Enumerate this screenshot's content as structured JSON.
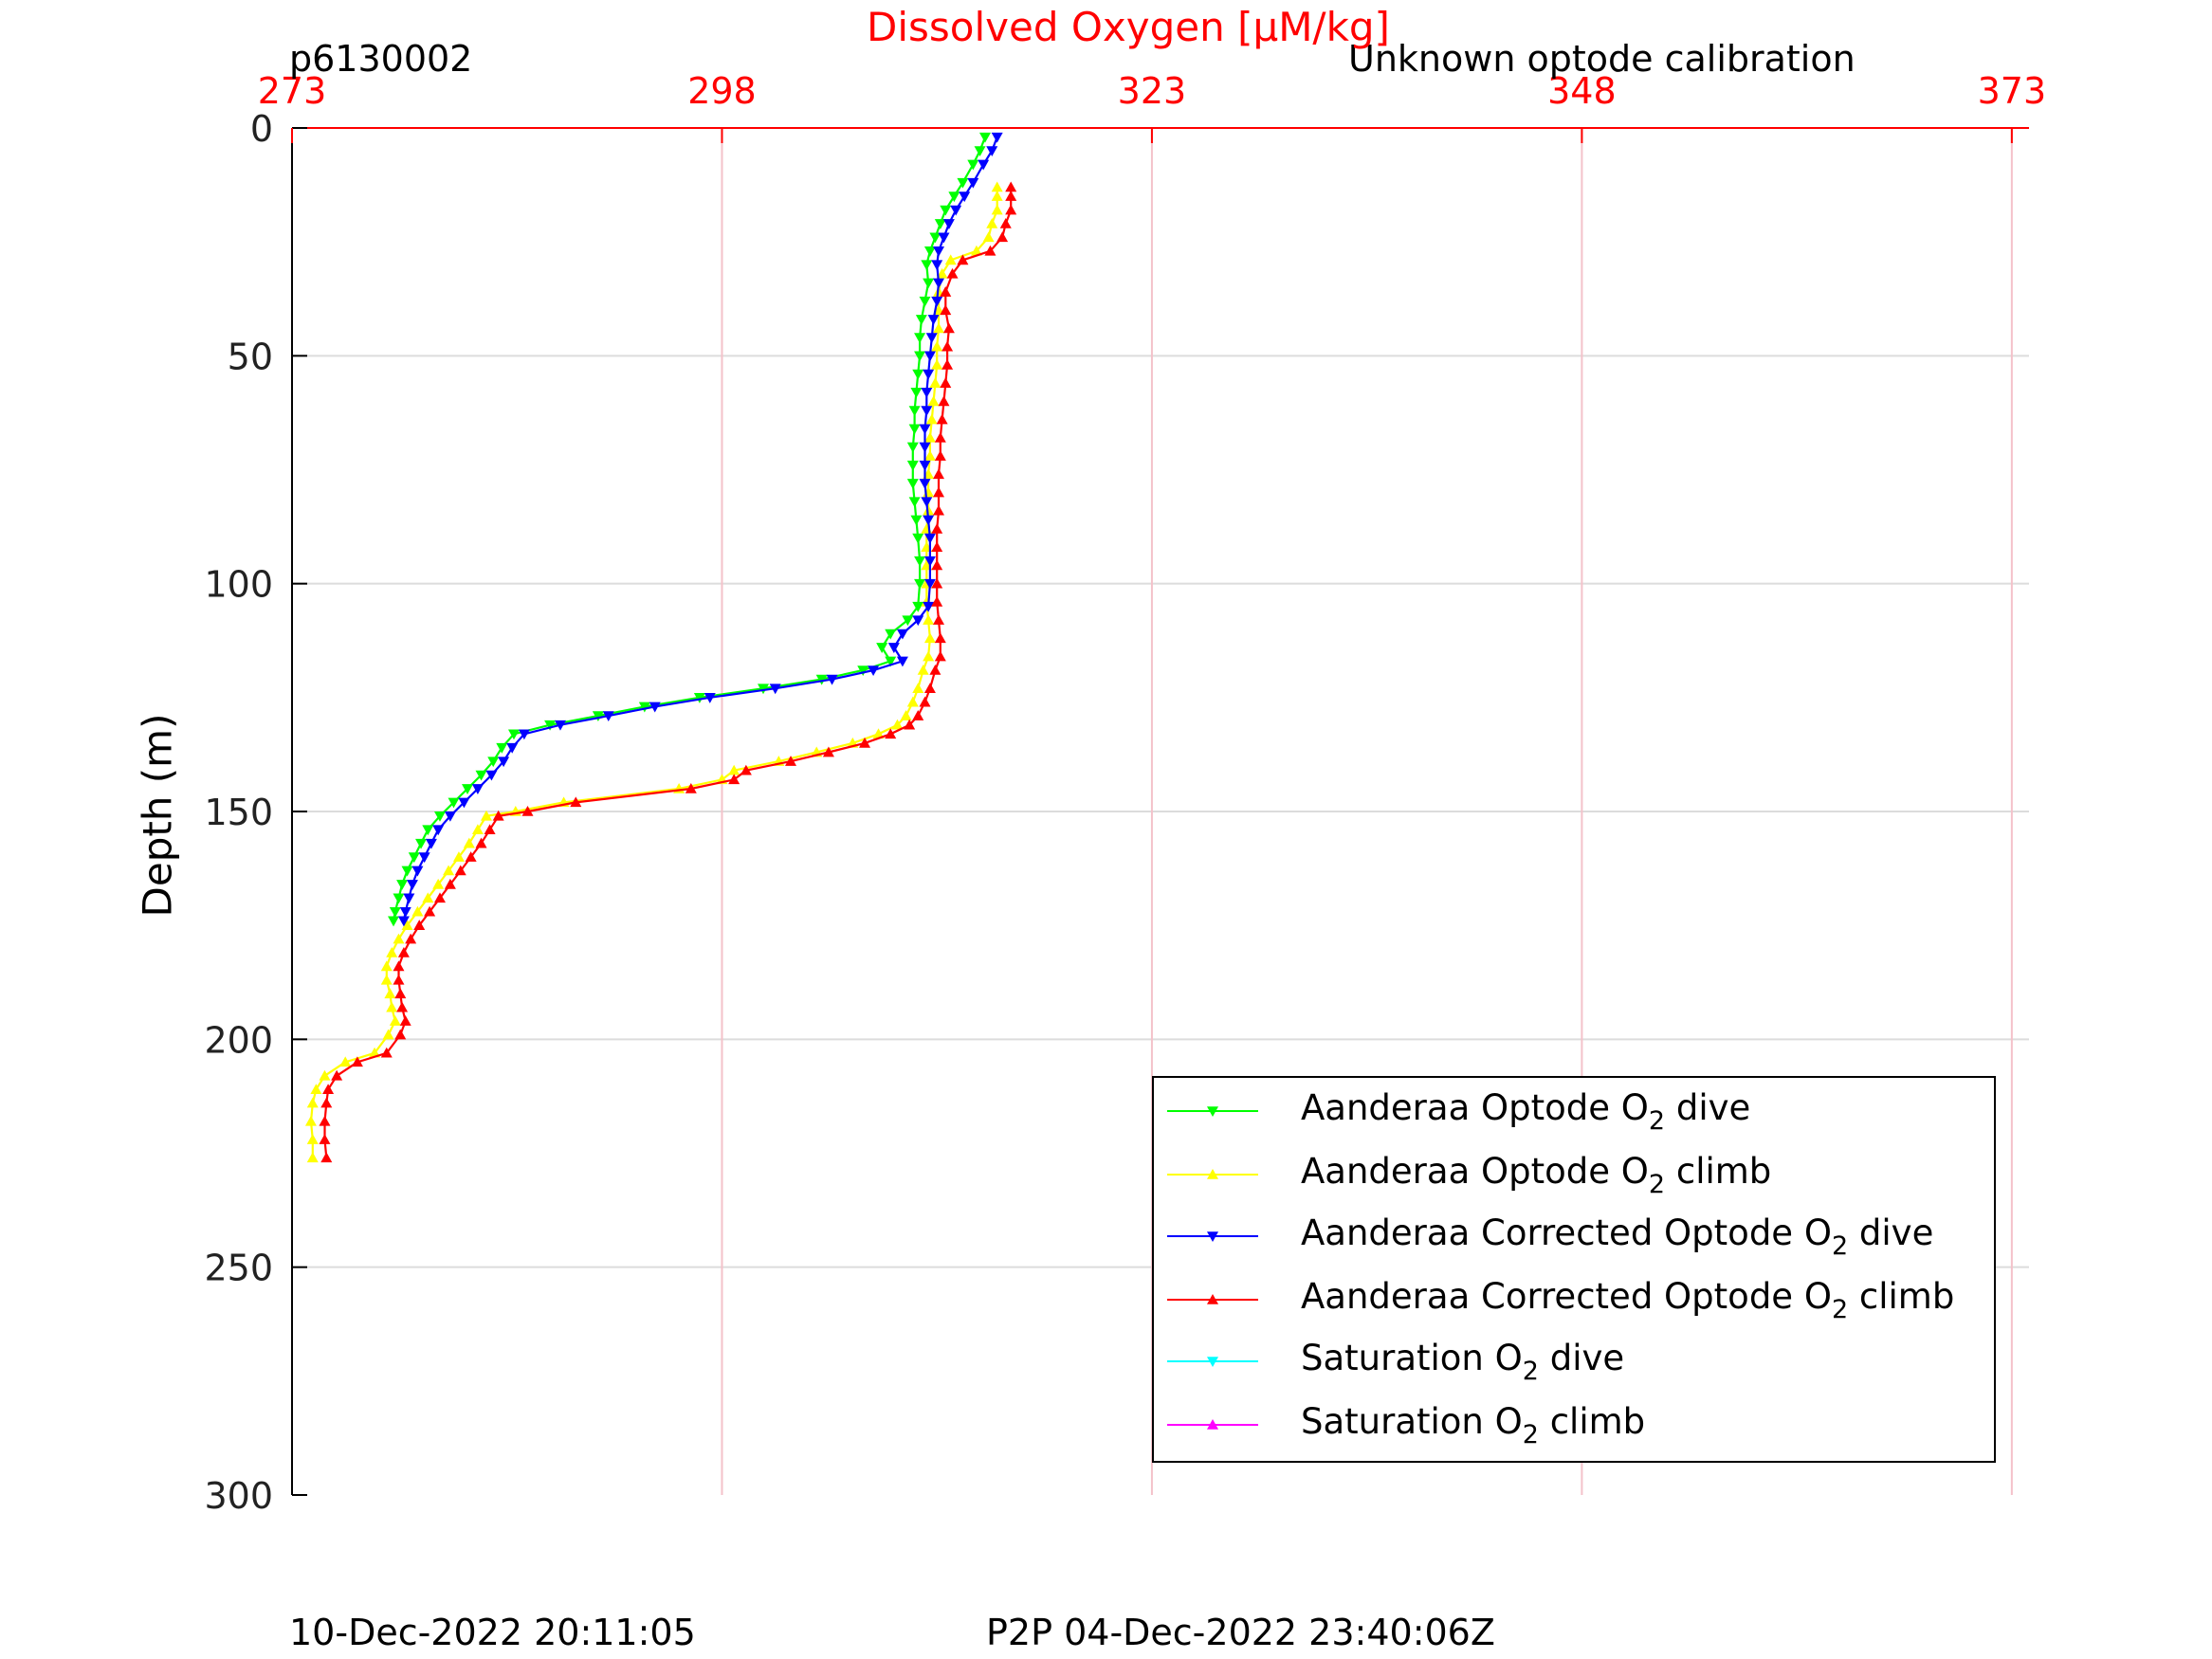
{
  "header": {
    "left_label": "p6130002",
    "right_label": "Unknown optode calibration"
  },
  "footer": {
    "left_text": "10-Dec-2022 20:11:05",
    "right_text": "P2P 04-Dec-2022 23:40:06Z"
  },
  "chart_data": {
    "type": "line",
    "title": "",
    "xlabel": "Dissolved Oxygen [μM/kg]",
    "ylabel": "Depth (m)",
    "x_axis_position": "top",
    "xlim": [
      273,
      374
    ],
    "ylim": [
      0,
      300
    ],
    "y_reversed": true,
    "x_ticks": [
      273,
      298,
      323,
      348,
      373
    ],
    "y_ticks": [
      0,
      50,
      100,
      150,
      200,
      250,
      300
    ],
    "grid": true,
    "legend_position": "bottom-right",
    "colors": {
      "x_axis": "#ff0000",
      "grid": "#dcdcdc",
      "x_grid": "#f4c2ca"
    },
    "series": [
      {
        "name_main": "Aanderaa Optode O",
        "name_sub": "2",
        "name_tail": " dive",
        "color": "#00ff00",
        "marker": "triangle-down",
        "points": [
          [
            313.3,
            2
          ],
          [
            313.0,
            5
          ],
          [
            312.6,
            8
          ],
          [
            312.0,
            12
          ],
          [
            311.5,
            15
          ],
          [
            311.0,
            18
          ],
          [
            310.7,
            21
          ],
          [
            310.4,
            24
          ],
          [
            310.1,
            27
          ],
          [
            309.9,
            30
          ],
          [
            310.0,
            34
          ],
          [
            309.8,
            38
          ],
          [
            309.6,
            42
          ],
          [
            309.5,
            46
          ],
          [
            309.5,
            50
          ],
          [
            309.4,
            54
          ],
          [
            309.3,
            58
          ],
          [
            309.2,
            62
          ],
          [
            309.2,
            66
          ],
          [
            309.1,
            70
          ],
          [
            309.1,
            74
          ],
          [
            309.1,
            78
          ],
          [
            309.2,
            82
          ],
          [
            309.3,
            86
          ],
          [
            309.4,
            90
          ],
          [
            309.5,
            95
          ],
          [
            309.5,
            100
          ],
          [
            309.4,
            105
          ],
          [
            308.8,
            108
          ],
          [
            307.8,
            111
          ],
          [
            307.3,
            114
          ],
          [
            307.8,
            117
          ],
          [
            306.2,
            119
          ],
          [
            303.8,
            121
          ],
          [
            300.4,
            123
          ],
          [
            296.7,
            125
          ],
          [
            293.5,
            127
          ],
          [
            290.8,
            129
          ],
          [
            288.0,
            131
          ],
          [
            285.9,
            133
          ],
          [
            285.2,
            136
          ],
          [
            284.7,
            139
          ],
          [
            284.0,
            142
          ],
          [
            283.2,
            145
          ],
          [
            282.4,
            148
          ],
          [
            281.6,
            151
          ],
          [
            280.9,
            154
          ],
          [
            280.5,
            157
          ],
          [
            280.1,
            160
          ],
          [
            279.7,
            163
          ],
          [
            279.4,
            166
          ],
          [
            279.2,
            169
          ],
          [
            279.0,
            172
          ],
          [
            278.9,
            174
          ]
        ]
      },
      {
        "name_main": "Aanderaa Optode O",
        "name_sub": "2",
        "name_tail": " climb",
        "color": "#ffff00",
        "marker": "triangle-up",
        "points": [
          [
            274.2,
            226
          ],
          [
            274.2,
            222
          ],
          [
            274.1,
            218
          ],
          [
            274.2,
            214
          ],
          [
            274.4,
            211
          ],
          [
            274.9,
            208
          ],
          [
            276.1,
            205
          ],
          [
            277.8,
            203
          ],
          [
            278.6,
            199
          ],
          [
            279.0,
            196
          ],
          [
            278.8,
            193
          ],
          [
            278.7,
            190
          ],
          [
            278.5,
            187
          ],
          [
            278.5,
            184
          ],
          [
            278.8,
            181
          ],
          [
            279.2,
            178
          ],
          [
            279.7,
            175
          ],
          [
            280.3,
            172
          ],
          [
            280.9,
            169
          ],
          [
            281.5,
            166
          ],
          [
            282.1,
            163
          ],
          [
            282.7,
            160
          ],
          [
            283.3,
            157
          ],
          [
            283.8,
            154
          ],
          [
            284.3,
            151
          ],
          [
            286.0,
            150
          ],
          [
            288.8,
            148
          ],
          [
            295.5,
            145
          ],
          [
            298.0,
            143
          ],
          [
            298.7,
            141
          ],
          [
            301.3,
            139
          ],
          [
            303.5,
            137
          ],
          [
            305.6,
            135
          ],
          [
            307.1,
            133
          ],
          [
            308.2,
            131
          ],
          [
            308.7,
            129
          ],
          [
            309.1,
            126
          ],
          [
            309.4,
            123
          ],
          [
            309.7,
            119
          ],
          [
            310.0,
            116
          ],
          [
            310.1,
            112
          ],
          [
            310.0,
            108
          ],
          [
            309.9,
            104
          ],
          [
            309.9,
            100
          ],
          [
            309.9,
            96
          ],
          [
            309.9,
            92
          ],
          [
            309.9,
            88
          ],
          [
            310.0,
            84
          ],
          [
            310.0,
            80
          ],
          [
            310.0,
            76
          ],
          [
            310.1,
            72
          ],
          [
            310.1,
            68
          ],
          [
            310.2,
            64
          ],
          [
            310.3,
            60
          ],
          [
            310.4,
            56
          ],
          [
            310.5,
            52
          ],
          [
            310.5,
            48
          ],
          [
            310.6,
            44
          ],
          [
            310.6,
            40
          ],
          [
            310.6,
            36
          ],
          [
            310.8,
            32
          ],
          [
            311.3,
            29
          ],
          [
            312.8,
            27
          ],
          [
            313.5,
            24
          ],
          [
            313.7,
            21
          ],
          [
            314.0,
            18
          ],
          [
            314.0,
            15
          ],
          [
            314.0,
            13
          ]
        ]
      },
      {
        "name_main": "Aanderaa Corrected Optode O",
        "name_sub": "2",
        "name_tail": " dive",
        "color": "#0000ff",
        "marker": "triangle-down",
        "points": [
          [
            314.0,
            2
          ],
          [
            313.7,
            5
          ],
          [
            313.2,
            8
          ],
          [
            312.6,
            12
          ],
          [
            312.1,
            15
          ],
          [
            311.6,
            18
          ],
          [
            311.2,
            21
          ],
          [
            310.9,
            24
          ],
          [
            310.6,
            27
          ],
          [
            310.5,
            30
          ],
          [
            310.6,
            34
          ],
          [
            310.5,
            38
          ],
          [
            310.3,
            42
          ],
          [
            310.2,
            46
          ],
          [
            310.1,
            50
          ],
          [
            310.0,
            54
          ],
          [
            309.9,
            58
          ],
          [
            309.9,
            62
          ],
          [
            309.8,
            66
          ],
          [
            309.8,
            70
          ],
          [
            309.8,
            74
          ],
          [
            309.8,
            78
          ],
          [
            309.9,
            82
          ],
          [
            310.0,
            86
          ],
          [
            310.1,
            90
          ],
          [
            310.1,
            95
          ],
          [
            310.1,
            100
          ],
          [
            310.0,
            105
          ],
          [
            309.4,
            108
          ],
          [
            308.5,
            111
          ],
          [
            308.0,
            114
          ],
          [
            308.5,
            117
          ],
          [
            306.8,
            119
          ],
          [
            304.4,
            121
          ],
          [
            301.1,
            123
          ],
          [
            297.3,
            125
          ],
          [
            294.1,
            127
          ],
          [
            291.4,
            129
          ],
          [
            288.6,
            131
          ],
          [
            286.5,
            133
          ],
          [
            285.8,
            136
          ],
          [
            285.3,
            139
          ],
          [
            284.6,
            142
          ],
          [
            283.8,
            145
          ],
          [
            283.0,
            148
          ],
          [
            282.2,
            151
          ],
          [
            281.5,
            154
          ],
          [
            281.1,
            157
          ],
          [
            280.7,
            160
          ],
          [
            280.3,
            163
          ],
          [
            280.0,
            166
          ],
          [
            279.8,
            169
          ],
          [
            279.6,
            172
          ],
          [
            279.5,
            174
          ]
        ]
      },
      {
        "name_main": "Aanderaa Corrected Optode O",
        "name_sub": "2",
        "name_tail": " climb",
        "color": "#ff0000",
        "marker": "triangle-up",
        "points": [
          [
            275.0,
            226
          ],
          [
            274.9,
            222
          ],
          [
            274.9,
            218
          ],
          [
            275.0,
            214
          ],
          [
            275.1,
            211
          ],
          [
            275.6,
            208
          ],
          [
            276.8,
            205
          ],
          [
            278.5,
            203
          ],
          [
            279.3,
            199
          ],
          [
            279.6,
            196
          ],
          [
            279.4,
            193
          ],
          [
            279.3,
            190
          ],
          [
            279.2,
            187
          ],
          [
            279.2,
            184
          ],
          [
            279.5,
            181
          ],
          [
            279.9,
            178
          ],
          [
            280.4,
            175
          ],
          [
            281.0,
            172
          ],
          [
            281.6,
            169
          ],
          [
            282.2,
            166
          ],
          [
            282.8,
            163
          ],
          [
            283.4,
            160
          ],
          [
            284.0,
            157
          ],
          [
            284.5,
            154
          ],
          [
            285.0,
            151
          ],
          [
            286.7,
            150
          ],
          [
            289.5,
            148
          ],
          [
            296.2,
            145
          ],
          [
            298.7,
            143
          ],
          [
            299.4,
            141
          ],
          [
            302.0,
            139
          ],
          [
            304.2,
            137
          ],
          [
            306.3,
            135
          ],
          [
            307.8,
            133
          ],
          [
            308.9,
            131
          ],
          [
            309.4,
            129
          ],
          [
            309.8,
            126
          ],
          [
            310.1,
            123
          ],
          [
            310.4,
            119
          ],
          [
            310.7,
            116
          ],
          [
            310.7,
            112
          ],
          [
            310.6,
            108
          ],
          [
            310.5,
            104
          ],
          [
            310.5,
            100
          ],
          [
            310.5,
            96
          ],
          [
            310.5,
            92
          ],
          [
            310.5,
            88
          ],
          [
            310.6,
            84
          ],
          [
            310.6,
            80
          ],
          [
            310.6,
            76
          ],
          [
            310.7,
            72
          ],
          [
            310.7,
            68
          ],
          [
            310.8,
            64
          ],
          [
            310.9,
            60
          ],
          [
            311.0,
            56
          ],
          [
            311.1,
            52
          ],
          [
            311.1,
            48
          ],
          [
            311.2,
            44
          ],
          [
            311.0,
            40
          ],
          [
            311.0,
            36
          ],
          [
            311.4,
            32
          ],
          [
            312.0,
            29
          ],
          [
            313.6,
            27
          ],
          [
            314.3,
            24
          ],
          [
            314.5,
            21
          ],
          [
            314.8,
            18
          ],
          [
            314.8,
            15
          ],
          [
            314.8,
            13
          ]
        ]
      },
      {
        "name_main": "Saturation O",
        "name_sub": "2",
        "name_tail": " dive",
        "color": "#00ffff",
        "marker": "triangle-down",
        "points": []
      },
      {
        "name_main": "Saturation O",
        "name_sub": "2",
        "name_tail": " climb",
        "color": "#ff00ff",
        "marker": "triangle-up",
        "points": []
      }
    ]
  }
}
